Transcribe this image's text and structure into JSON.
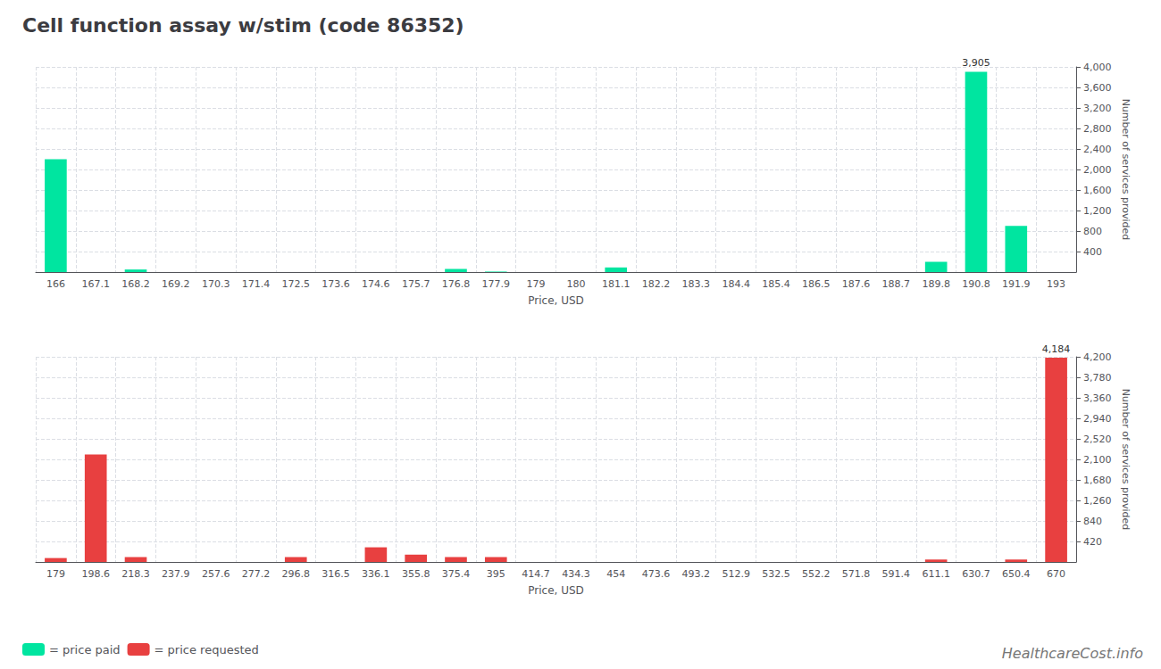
{
  "chart_data": [
    {
      "type": "bar",
      "title": "Cell function assay w/stim (code 86352)",
      "xlabel": "Price, USD",
      "ylabel": "Number of services provided",
      "categories": [
        "166",
        "167.1",
        "168.2",
        "169.2",
        "170.3",
        "171.4",
        "172.5",
        "173.6",
        "174.6",
        "175.7",
        "176.8",
        "177.9",
        "179",
        "180",
        "181.1",
        "182.2",
        "183.3",
        "184.4",
        "185.4",
        "186.5",
        "187.6",
        "188.7",
        "189.8",
        "190.8",
        "191.9",
        "193"
      ],
      "series": [
        {
          "name": "= price paid",
          "color": "#00e5a0",
          "values": [
            2200,
            0,
            50,
            0,
            0,
            0,
            0,
            0,
            0,
            0,
            60,
            10,
            0,
            0,
            90,
            0,
            0,
            0,
            0,
            0,
            0,
            0,
            200,
            3905,
            900,
            0
          ]
        }
      ],
      "ylim": [
        0,
        4000
      ],
      "yticks": [
        400,
        800,
        1200,
        1600,
        2000,
        2400,
        2800,
        3200,
        3600,
        4000
      ],
      "grid": true,
      "legend": "bottom left",
      "annotations": [
        {
          "text": "3,905",
          "x": "190.8",
          "y": 3905
        }
      ]
    },
    {
      "type": "bar",
      "xlabel": "Price, USD",
      "ylabel": "Number of services provided",
      "categories": [
        "179",
        "198.6",
        "218.3",
        "237.9",
        "257.6",
        "277.2",
        "296.8",
        "316.5",
        "336.1",
        "355.8",
        "375.4",
        "395",
        "414.7",
        "434.3",
        "454",
        "473.6",
        "493.2",
        "512.9",
        "532.5",
        "552.2",
        "571.8",
        "591.4",
        "611.1",
        "630.7",
        "650.4",
        "670"
      ],
      "series": [
        {
          "name": "= price requested",
          "color": "#e84040",
          "values": [
            80,
            2200,
            100,
            0,
            0,
            0,
            100,
            0,
            300,
            150,
            100,
            100,
            0,
            0,
            0,
            0,
            0,
            0,
            0,
            0,
            0,
            0,
            50,
            0,
            50,
            4184
          ]
        }
      ],
      "ylim": [
        0,
        4200
      ],
      "yticks": [
        420,
        840,
        1260,
        1680,
        2100,
        2520,
        2940,
        3360,
        3780,
        4200
      ],
      "grid": true,
      "annotations": [
        {
          "text": "4,184",
          "x": "670",
          "y": 4184
        },
        {
          "text": "HealthcareCost.info"
        }
      ]
    }
  ]
}
